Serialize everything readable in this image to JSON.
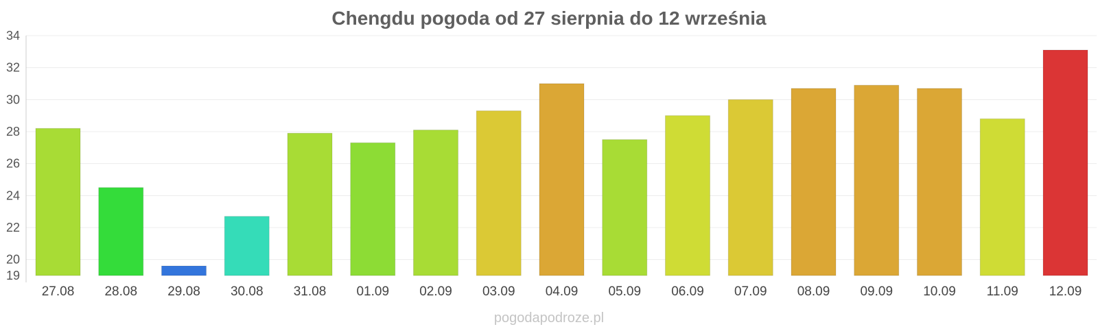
{
  "chart_data": {
    "type": "bar",
    "title": "Chengdu pogoda od 27 sierpnia do 12 września",
    "xlabel": "",
    "ylabel": "",
    "categories": [
      "27.08",
      "28.08",
      "29.08",
      "30.08",
      "31.08",
      "01.09",
      "02.09",
      "03.09",
      "04.09",
      "05.09",
      "06.09",
      "07.09",
      "08.09",
      "09.09",
      "10.09",
      "11.09",
      "12.09"
    ],
    "values": [
      28.2,
      24.5,
      19.6,
      22.7,
      27.9,
      27.3,
      28.1,
      29.3,
      31.0,
      27.5,
      29.0,
      30.0,
      30.7,
      30.9,
      30.7,
      28.8,
      33.1
    ],
    "colors": [
      "#a8dc35",
      "#34dc3a",
      "#3375dc",
      "#35dcb8",
      "#a8dc35",
      "#8ddc35",
      "#a8dc35",
      "#dbc935",
      "#dba735",
      "#a8dc35",
      "#cfdc35",
      "#dbc935",
      "#dba735",
      "#dba735",
      "#dba735",
      "#cfdc35",
      "#db3535"
    ],
    "ylim": [
      19,
      34
    ],
    "yticks": [
      19,
      20,
      22,
      24,
      26,
      28,
      30,
      32,
      34
    ],
    "grid": true,
    "legend": "none"
  },
  "watermark": "pogodapodroze.pl"
}
